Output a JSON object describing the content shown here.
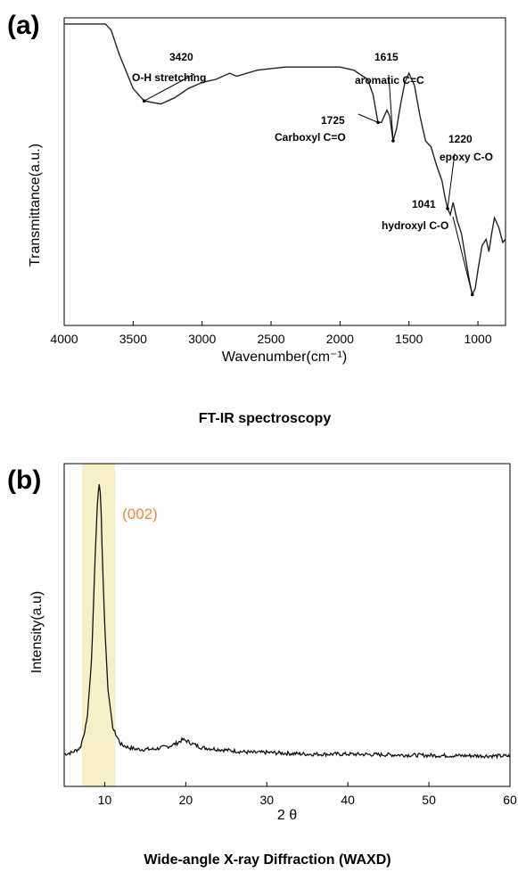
{
  "chart_data": [
    {
      "panel": "(a)",
      "type": "line",
      "caption": "FT-IR spectroscopy",
      "xlabel": "Wavenumber(cm⁻¹)",
      "ylabel": "Transmittance(a.u.)",
      "xlim": [
        4000,
        800
      ],
      "ylim": [
        0,
        100
      ],
      "x_ticks": [
        4000,
        3500,
        3000,
        2500,
        2000,
        1500,
        1000
      ],
      "grid": false,
      "series": [
        {
          "x": [
            4000,
            3700,
            3660,
            3600,
            3500,
            3420,
            3300,
            3200,
            3100,
            3000,
            2900,
            2800,
            2750,
            2600,
            2400,
            2200,
            2000,
            1900,
            1800,
            1760,
            1725,
            1700,
            1680,
            1660,
            1640,
            1615,
            1590,
            1560,
            1530,
            1500,
            1460,
            1420,
            1380,
            1340,
            1300,
            1260,
            1240,
            1220,
            1200,
            1180,
            1150,
            1120,
            1090,
            1060,
            1041,
            1020,
            1000,
            970,
            940,
            920,
            900,
            880,
            850,
            820,
            800
          ],
          "y": [
            98,
            98,
            96,
            88,
            77,
            73,
            72,
            74,
            77,
            79,
            80,
            82,
            81,
            83,
            84,
            84,
            84,
            83,
            80,
            75,
            66,
            66,
            68,
            70,
            68,
            60,
            64,
            72,
            79,
            82,
            78,
            68,
            60,
            58,
            52,
            47,
            42,
            38,
            36,
            40,
            34,
            30,
            22,
            14,
            10,
            12,
            18,
            26,
            28,
            24,
            30,
            35,
            32,
            27,
            28
          ]
        }
      ],
      "annotations": [
        {
          "x": 3420,
          "number": "3420",
          "label": "O-H stretching"
        },
        {
          "x": 1725,
          "number": "1725",
          "label": "Carboxyl C=O"
        },
        {
          "x": 1615,
          "number": "1615",
          "label": "aromatic C=C"
        },
        {
          "x": 1220,
          "number": "1220",
          "label": "epoxy C-O"
        },
        {
          "x": 1041,
          "number": "1041",
          "label": "hydroxyl C-O"
        }
      ]
    },
    {
      "panel": "(b)",
      "type": "line",
      "caption": "Wide-angle X-ray Diffraction (WAXD)",
      "xlabel": "2 θ",
      "ylabel": "Intensity(a.u)",
      "xlim": [
        5,
        60
      ],
      "ylim": [
        0,
        100
      ],
      "x_ticks": [
        10,
        20,
        30,
        40,
        50,
        60
      ],
      "grid": false,
      "highlight": {
        "x": [
          7.2,
          11.3
        ],
        "color": "#f7efc7"
      },
      "series": [
        {
          "x": [
            5,
            6,
            7,
            7.8,
            8.4,
            8.8,
            9.1,
            9.3,
            9.5,
            9.7,
            10.0,
            10.4,
            11.0,
            12,
            13,
            14,
            15,
            16,
            17,
            18,
            19,
            19.6,
            20.2,
            21,
            22,
            24,
            26,
            28,
            30,
            35,
            40,
            45,
            50,
            55,
            60
          ],
          "y": [
            10,
            10.5,
            12,
            20,
            40,
            70,
            88,
            94,
            90,
            72,
            50,
            30,
            18,
            13,
            12,
            11.5,
            11.5,
            11.5,
            12,
            12.5,
            13.5,
            14.5,
            14,
            13,
            12,
            11.5,
            11,
            10.5,
            10.5,
            10,
            10,
            9.8,
            9.6,
            9.5,
            9.4
          ]
        }
      ],
      "peak_label": {
        "x": 9.3,
        "text": "(002)",
        "color": "#e8893a"
      }
    }
  ]
}
